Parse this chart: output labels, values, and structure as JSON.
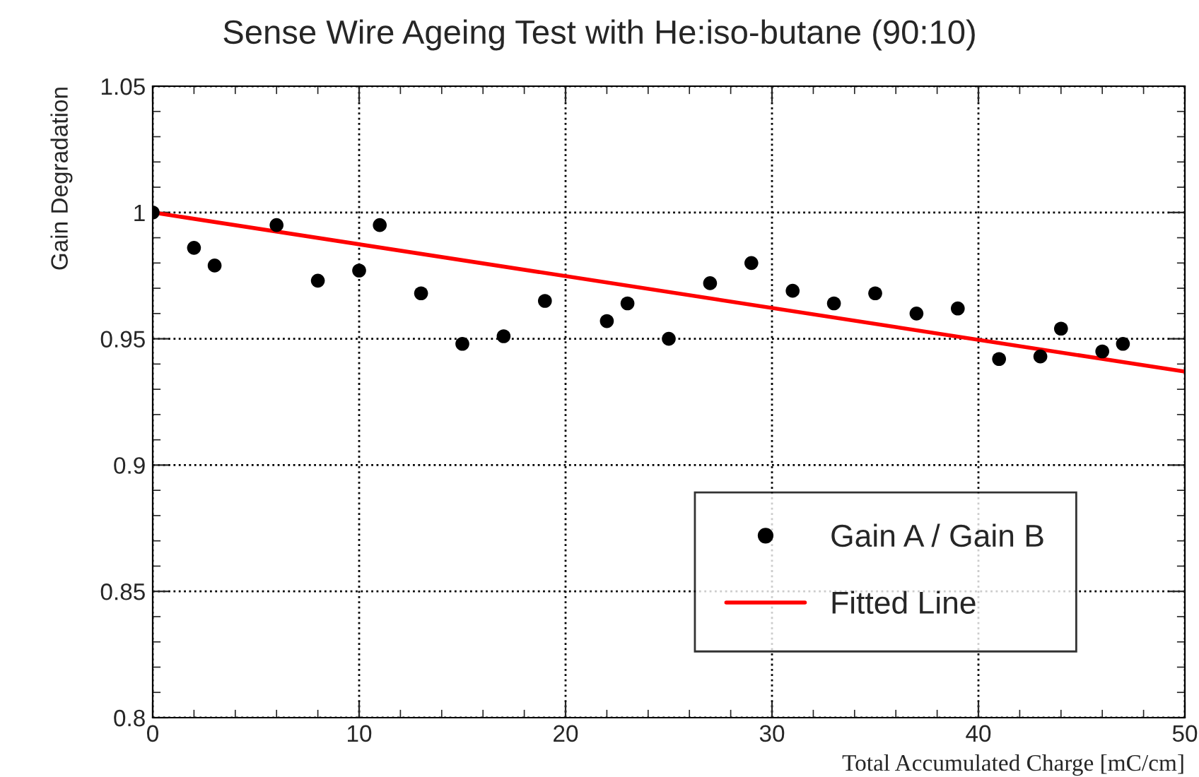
{
  "chart_data": {
    "type": "scatter",
    "title": "Sense Wire Ageing Test with He:iso-butane (90:10)",
    "xlabel": "Total Accumulated Charge [mC/cm]",
    "ylabel": "Gain Degradation",
    "series": [
      {
        "name": "Gain A / Gain B",
        "color": "#000000",
        "marker": "circle",
        "x": [
          0,
          2,
          3,
          6,
          8,
          10,
          11,
          13,
          15,
          17,
          19,
          22,
          23,
          25,
          27,
          29,
          31,
          33,
          35,
          37,
          39,
          41,
          43,
          44,
          46,
          47
        ],
        "values": [
          1.0,
          0.986,
          0.979,
          0.995,
          0.973,
          0.977,
          0.995,
          0.968,
          0.948,
          0.951,
          0.965,
          0.957,
          0.964,
          0.95,
          0.972,
          0.98,
          0.969,
          0.964,
          0.968,
          0.96,
          0.962,
          0.942,
          0.943,
          0.954,
          0.945,
          0.948
        ]
      },
      {
        "name": "Fitted Line",
        "type": "line",
        "color": "#ff0000",
        "marker": "none",
        "line_style": "solid",
        "x": [
          0,
          50
        ],
        "values": [
          1.0,
          0.937
        ]
      }
    ],
    "xlim": [
      0,
      50
    ],
    "xticks": [
      0,
      10,
      20,
      30,
      40,
      50
    ],
    "ylim": [
      0.8,
      1.05
    ],
    "yticks": [
      0.8,
      0.85,
      0.9,
      0.95,
      1,
      1.05
    ],
    "grid": true,
    "legend": "bottom right"
  }
}
